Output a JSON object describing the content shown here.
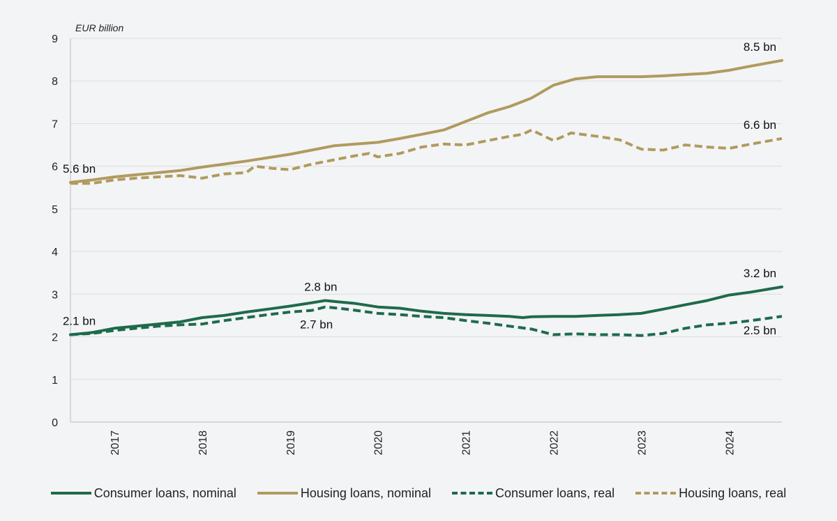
{
  "chart_data": {
    "type": "line",
    "unit_label": "EUR billion",
    "ylim": [
      0,
      9
    ],
    "yticks": [
      "0",
      "1",
      "2",
      "3",
      "4",
      "5",
      "6",
      "7",
      "8",
      "9"
    ],
    "x_range": [
      2016.5,
      2024.6
    ],
    "xticks": [
      {
        "label": "2017",
        "x": 2017.0
      },
      {
        "label": "2018",
        "x": 2018.0
      },
      {
        "label": "2019",
        "x": 2019.0
      },
      {
        "label": "2020",
        "x": 2020.0
      },
      {
        "label": "2021",
        "x": 2021.0
      },
      {
        "label": "2022",
        "x": 2022.0
      },
      {
        "label": "2023",
        "x": 2023.0
      },
      {
        "label": "2024",
        "x": 2024.0
      }
    ],
    "grid": true,
    "series": [
      {
        "name": "Consumer loans, nominal",
        "color": "#1e6b4b",
        "dash": false,
        "x": [
          2016.5,
          2016.75,
          2017.0,
          2017.25,
          2017.5,
          2017.75,
          2018.0,
          2018.25,
          2018.5,
          2018.75,
          2019.0,
          2019.25,
          2019.4,
          2019.55,
          2019.75,
          2020.0,
          2020.25,
          2020.5,
          2020.75,
          2021.0,
          2021.25,
          2021.5,
          2021.65,
          2021.75,
          2022.0,
          2022.25,
          2022.5,
          2022.75,
          2023.0,
          2023.25,
          2023.5,
          2023.75,
          2024.0,
          2024.25,
          2024.6
        ],
        "values": [
          2.05,
          2.1,
          2.2,
          2.25,
          2.3,
          2.35,
          2.45,
          2.5,
          2.58,
          2.65,
          2.72,
          2.8,
          2.85,
          2.82,
          2.78,
          2.7,
          2.67,
          2.6,
          2.55,
          2.52,
          2.5,
          2.48,
          2.45,
          2.47,
          2.48,
          2.48,
          2.5,
          2.52,
          2.55,
          2.65,
          2.75,
          2.85,
          2.98,
          3.05,
          3.17
        ]
      },
      {
        "name": "Housing loans, nominal",
        "color": "#b09a5e",
        "dash": false,
        "x": [
          2016.5,
          2016.75,
          2017.0,
          2017.25,
          2017.5,
          2017.75,
          2018.0,
          2018.25,
          2018.5,
          2018.75,
          2019.0,
          2019.25,
          2019.5,
          2019.75,
          2020.0,
          2020.25,
          2020.5,
          2020.75,
          2021.0,
          2021.25,
          2021.5,
          2021.75,
          2022.0,
          2022.25,
          2022.5,
          2022.75,
          2023.0,
          2023.25,
          2023.5,
          2023.75,
          2024.0,
          2024.25,
          2024.6
        ],
        "values": [
          5.62,
          5.68,
          5.75,
          5.8,
          5.85,
          5.9,
          5.98,
          6.05,
          6.12,
          6.2,
          6.28,
          6.38,
          6.48,
          6.52,
          6.56,
          6.65,
          6.75,
          6.85,
          7.05,
          7.25,
          7.4,
          7.6,
          7.9,
          8.05,
          8.1,
          8.1,
          8.1,
          8.12,
          8.15,
          8.18,
          8.25,
          8.35,
          8.48
        ]
      },
      {
        "name": "Consumer loans, real",
        "color": "#1e6b4b",
        "dash": true,
        "x": [
          2016.5,
          2016.75,
          2017.0,
          2017.25,
          2017.5,
          2017.75,
          2018.0,
          2018.25,
          2018.5,
          2018.75,
          2019.0,
          2019.25,
          2019.4,
          2019.55,
          2019.75,
          2020.0,
          2020.25,
          2020.5,
          2020.75,
          2021.0,
          2021.25,
          2021.5,
          2021.75,
          2022.0,
          2022.25,
          2022.5,
          2022.75,
          2023.0,
          2023.25,
          2023.5,
          2023.75,
          2024.0,
          2024.25,
          2024.6
        ],
        "values": [
          2.05,
          2.08,
          2.15,
          2.2,
          2.25,
          2.28,
          2.3,
          2.38,
          2.45,
          2.52,
          2.58,
          2.62,
          2.7,
          2.67,
          2.62,
          2.55,
          2.52,
          2.48,
          2.45,
          2.38,
          2.32,
          2.25,
          2.18,
          2.05,
          2.07,
          2.05,
          2.05,
          2.03,
          2.08,
          2.2,
          2.28,
          2.32,
          2.38,
          2.48
        ]
      },
      {
        "name": "Housing loans, real",
        "color": "#b09a5e",
        "dash": true,
        "x": [
          2016.5,
          2016.75,
          2017.0,
          2017.25,
          2017.5,
          2017.75,
          2018.0,
          2018.25,
          2018.5,
          2018.6,
          2018.8,
          2019.0,
          2019.25,
          2019.5,
          2019.75,
          2019.9,
          2020.0,
          2020.25,
          2020.5,
          2020.75,
          2021.0,
          2021.25,
          2021.5,
          2021.65,
          2021.75,
          2022.0,
          2022.2,
          2022.5,
          2022.75,
          2023.0,
          2023.25,
          2023.5,
          2023.75,
          2024.0,
          2024.25,
          2024.6
        ],
        "values": [
          5.6,
          5.6,
          5.68,
          5.72,
          5.75,
          5.78,
          5.72,
          5.82,
          5.85,
          6.0,
          5.95,
          5.92,
          6.05,
          6.15,
          6.25,
          6.3,
          6.22,
          6.3,
          6.45,
          6.52,
          6.5,
          6.6,
          6.7,
          6.75,
          6.85,
          6.6,
          6.78,
          6.7,
          6.62,
          6.4,
          6.38,
          6.5,
          6.45,
          6.42,
          6.52,
          6.65
        ]
      }
    ],
    "annotations": [
      {
        "text": "5.6 bn",
        "x": 2016.6,
        "y": 5.62,
        "pos": "above"
      },
      {
        "text": "8.5 bn",
        "x": 2024.35,
        "y": 8.48,
        "pos": "above"
      },
      {
        "text": "6.6 bn",
        "x": 2024.35,
        "y": 6.65,
        "pos": "above"
      },
      {
        "text": "2.1 bn",
        "x": 2016.6,
        "y": 2.05,
        "pos": "above"
      },
      {
        "text": "2.8 bn",
        "x": 2019.35,
        "y": 2.85,
        "pos": "above"
      },
      {
        "text": "2.7 bn",
        "x": 2019.3,
        "y": 2.62,
        "pos": "below"
      },
      {
        "text": "3.2 bn",
        "x": 2024.35,
        "y": 3.17,
        "pos": "above"
      },
      {
        "text": "2.5 bn",
        "x": 2024.35,
        "y": 2.48,
        "pos": "below"
      }
    ]
  }
}
